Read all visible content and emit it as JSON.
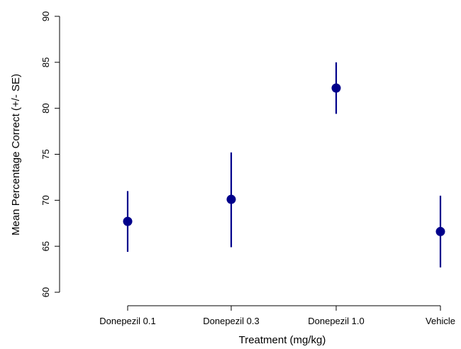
{
  "chart_data": {
    "type": "scatter",
    "title": "",
    "xlabel": "Treatment (mg/kg)",
    "ylabel": "Mean Percentage Correct (+/- SE)",
    "ylim": [
      60,
      90
    ],
    "yticks": [
      60,
      65,
      70,
      75,
      80,
      85,
      90
    ],
    "grid": false,
    "categories": [
      "Donepezil 0.1",
      "Donepezil 0.3",
      "Donepezil 1.0",
      "Vehicle"
    ],
    "series": [
      {
        "values": [
          67.7,
          70.1,
          82.2,
          66.6
        ],
        "lower": [
          64.4,
          64.9,
          79.4,
          62.7
        ],
        "upper": [
          71.0,
          75.2,
          85.0,
          70.5
        ],
        "color": "#00008B"
      }
    ]
  }
}
